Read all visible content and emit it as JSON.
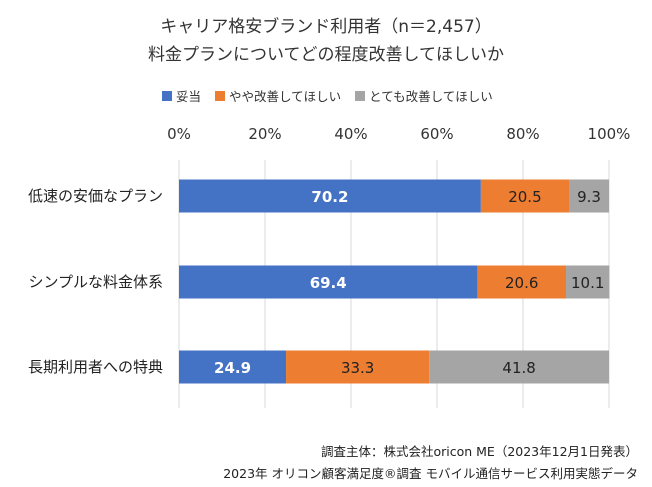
{
  "title_line1": "キャリア格安ブランド利用者（n＝2,457）",
  "title_line2": "料金プランについてどの程度改善してほしいか",
  "source_line1": "調査主体：株式会社oricon ME（2023年12月1日発表）",
  "source_line2": "2023年 オリコン顧客満足度®調査 モバイル通信サービス利用実態データ",
  "chart_data": {
    "type": "bar",
    "orientation": "horizontal",
    "stacked": true,
    "categories": [
      "低速の安価なプラン",
      "シンプルな料金体系",
      "長期利用者への特典"
    ],
    "series": [
      {
        "name": "妥当",
        "color": "#4472C4",
        "values": [
          70.2,
          69.4,
          24.9
        ]
      },
      {
        "name": "やや改善してほしい",
        "color": "#ED7D31",
        "values": [
          20.5,
          20.6,
          33.3
        ]
      },
      {
        "name": "とても改善してほしい",
        "color": "#A5A5A5",
        "values": [
          9.3,
          10.1,
          41.8
        ]
      }
    ],
    "xlim": [
      0,
      100
    ],
    "xticks": [
      "0%",
      "20%",
      "40%",
      "60%",
      "80%",
      "100%"
    ],
    "legend_position": "top",
    "grid": true
  }
}
